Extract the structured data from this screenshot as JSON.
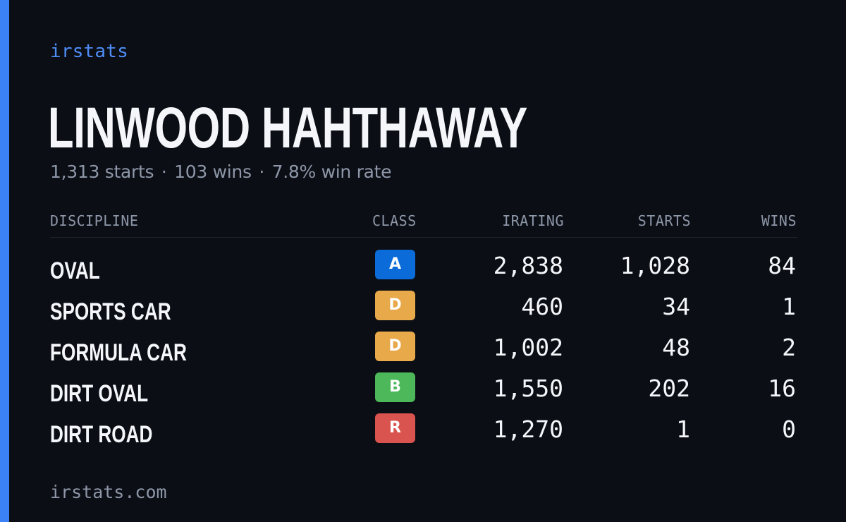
{
  "brand": {
    "name": "irstats",
    "footer_url": "irstats.com"
  },
  "player": {
    "name": "LINWOOD HAHTHAWAY",
    "starts_text": "1,313 starts",
    "wins_text": "103 wins",
    "win_rate_text": "7.8% win rate",
    "separator": "·"
  },
  "table": {
    "headers": {
      "discipline": "DISCIPLINE",
      "class": "CLASS",
      "irating": "IRATING",
      "starts": "STARTS",
      "wins": "WINS"
    },
    "rows": [
      {
        "discipline": "OVAL",
        "class": "A",
        "class_color": "#0b6bd8",
        "irating": "2,838",
        "starts": "1,028",
        "wins": "84"
      },
      {
        "discipline": "SPORTS CAR",
        "class": "D",
        "class_color": "#e8a94b",
        "irating": "460",
        "starts": "34",
        "wins": "1"
      },
      {
        "discipline": "FORMULA CAR",
        "class": "D",
        "class_color": "#e8a94b",
        "irating": "1,002",
        "starts": "48",
        "wins": "2"
      },
      {
        "discipline": "DIRT OVAL",
        "class": "B",
        "class_color": "#4cb85a",
        "irating": "1,550",
        "starts": "202",
        "wins": "16"
      },
      {
        "discipline": "DIRT ROAD",
        "class": "R",
        "class_color": "#d9534f",
        "irating": "1,270",
        "starts": "1",
        "wins": "0"
      }
    ]
  },
  "colors": {
    "background": "#0b0e15",
    "accent": "#3b82f6",
    "brand_text": "#4f8df7",
    "muted_text": "#8e97a8"
  }
}
